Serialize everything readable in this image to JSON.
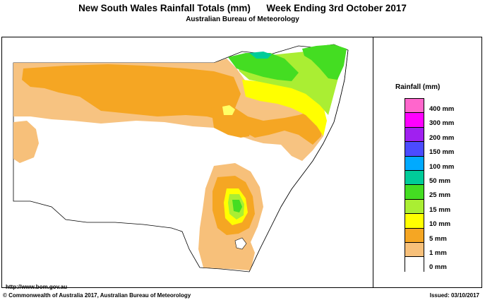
{
  "title": "New South Wales Rainfall Totals (mm)      Week Ending 3rd October 2017",
  "subtitle": "Australian Bureau of Meteorology",
  "legend": {
    "title": "Rainfall (mm)",
    "items": [
      {
        "label": "400 mm",
        "color": "#ff66cc"
      },
      {
        "label": "300 mm",
        "color": "#ff00ff"
      },
      {
        "label": "200 mm",
        "color": "#a020f0"
      },
      {
        "label": "150 mm",
        "color": "#4b4bff"
      },
      {
        "label": "100 mm",
        "color": "#00aaff"
      },
      {
        "label": "50 mm",
        "color": "#00cc99"
      },
      {
        "label": "25 mm",
        "color": "#44dd22"
      },
      {
        "label": "15 mm",
        "color": "#aaee33"
      },
      {
        "label": "10 mm",
        "color": "#ffff00"
      },
      {
        "label": "5 mm",
        "color": "#f5a623"
      },
      {
        "label": "1 mm",
        "color": "#f7c07a"
      },
      {
        "label": "0 mm",
        "color": "#ffffff"
      }
    ]
  },
  "url": "http://www.bom.gov.au",
  "copyright": "© Commonwealth of Australia 2017, Australian Bureau of Meteorology",
  "issued": "Issued: 03/10/2017"
}
